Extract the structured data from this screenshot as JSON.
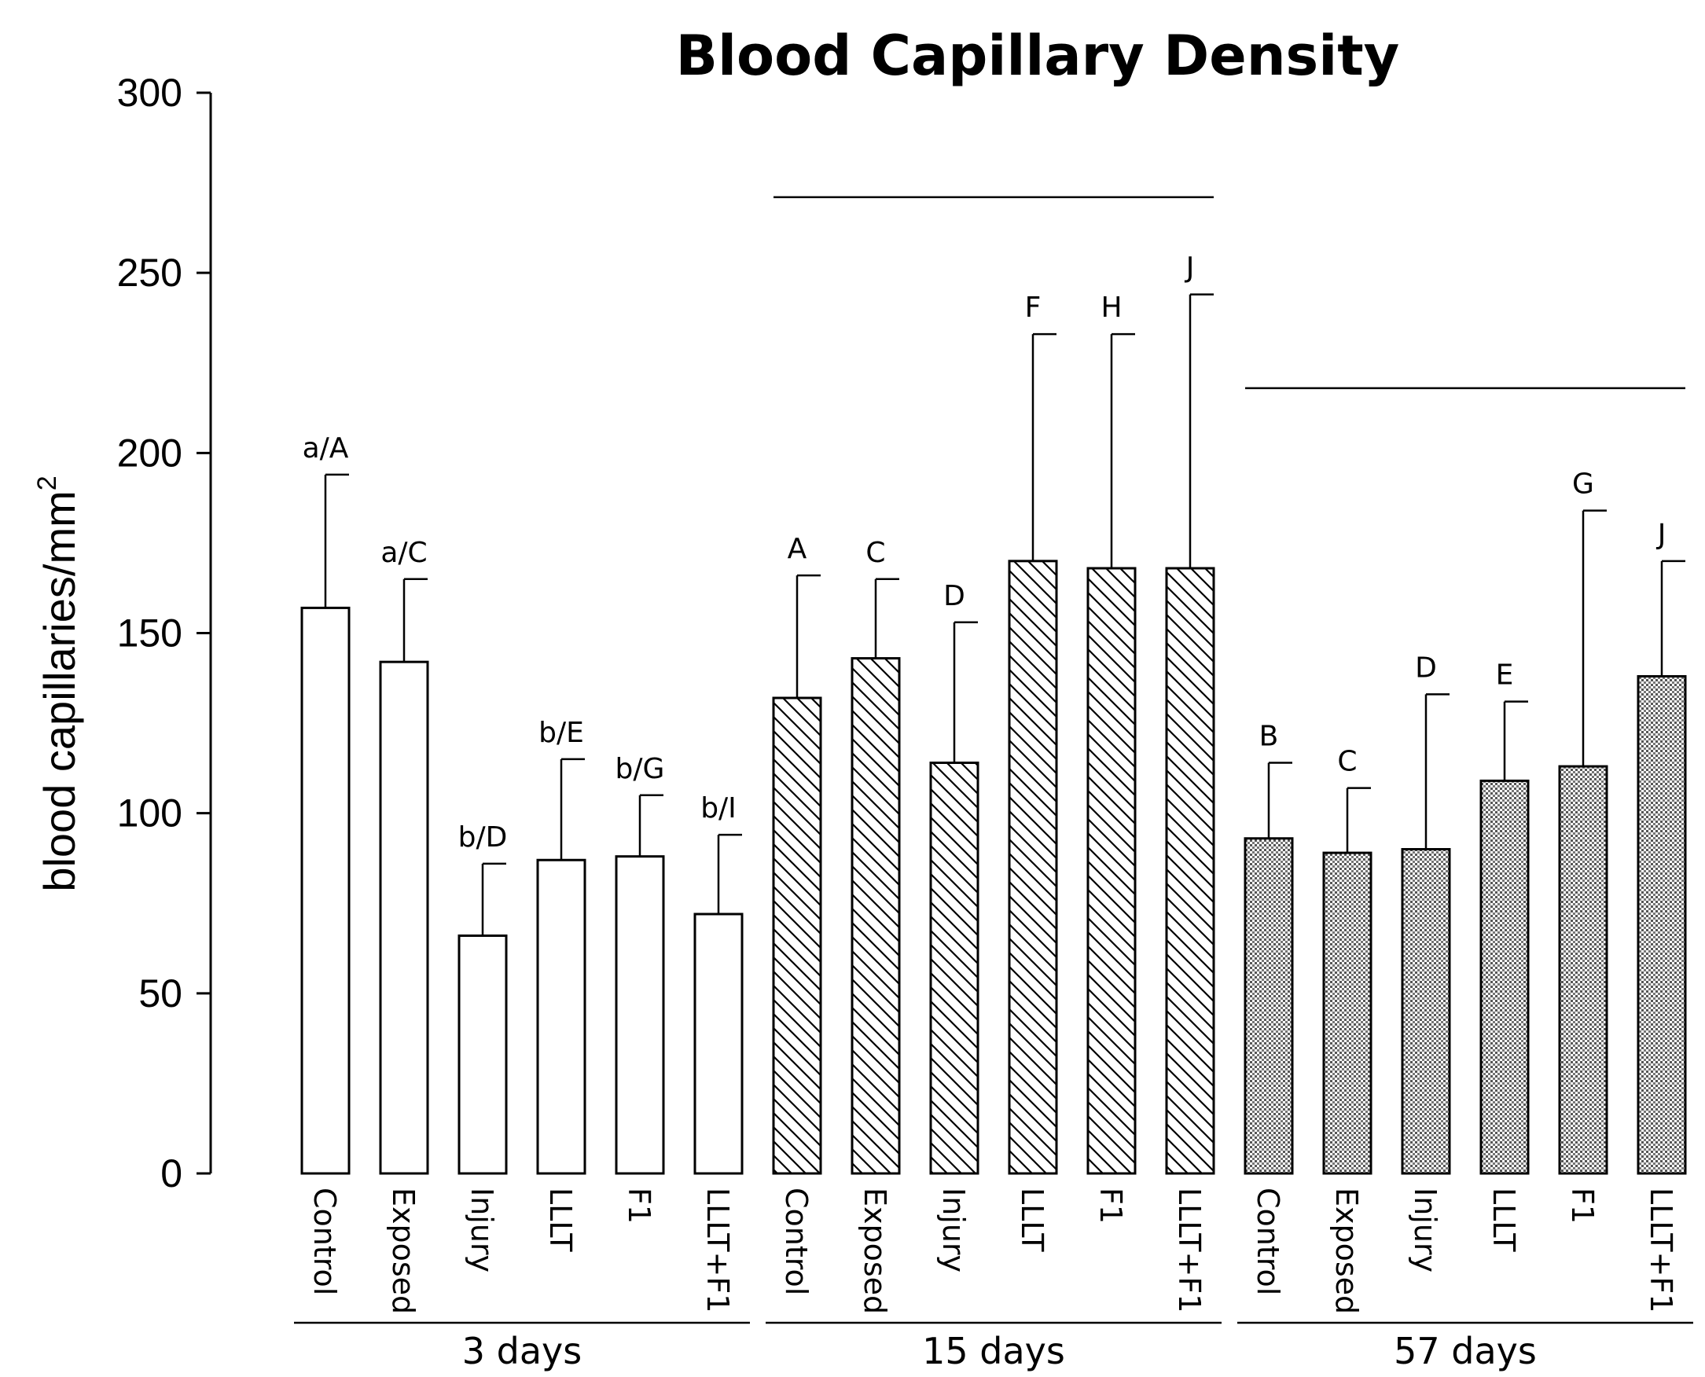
{
  "chart_data": {
    "type": "bar",
    "title": "Blood Capillary Density",
    "xlabel": "",
    "ylabel": "blood capillaries/mm",
    "ylabel_superscript": "2",
    "ylim": [
      0,
      300
    ],
    "yticks": [
      0,
      50,
      100,
      150,
      200,
      250,
      300
    ],
    "grid": false,
    "groups": [
      {
        "label": "3 days",
        "pattern": "none",
        "bars": [
          {
            "category": "Control",
            "value": 157,
            "error": 37,
            "annotation": "a/A"
          },
          {
            "category": "Exposed",
            "value": 142,
            "error": 23,
            "annotation": "a/C"
          },
          {
            "category": "Injury",
            "value": 66,
            "error": 20,
            "annotation": "b/D"
          },
          {
            "category": "LLLT",
            "value": 87,
            "error": 28,
            "annotation": "b/E"
          },
          {
            "category": "F1",
            "value": 88,
            "error": 17,
            "annotation": "b/G"
          },
          {
            "category": "LLLT+F1",
            "value": 72,
            "error": 22,
            "annotation": "b/I"
          }
        ]
      },
      {
        "label": "15 days",
        "pattern": "diagonal",
        "bars": [
          {
            "category": "Control",
            "value": 132,
            "error": 34,
            "annotation": "A"
          },
          {
            "category": "Exposed",
            "value": 143,
            "error": 22,
            "annotation": "C"
          },
          {
            "category": "Injury",
            "value": 114,
            "error": 39,
            "annotation": "D"
          },
          {
            "category": "LLLT",
            "value": 170,
            "error": 63,
            "annotation": "F"
          },
          {
            "category": "F1",
            "value": 168,
            "error": 65,
            "annotation": "H"
          },
          {
            "category": "LLLT+F1",
            "value": 168,
            "error": 76,
            "annotation": "J"
          }
        ]
      },
      {
        "label": "57 days",
        "pattern": "dotted",
        "bars": [
          {
            "category": "Control",
            "value": 93,
            "error": 21,
            "annotation": "B"
          },
          {
            "category": "Exposed",
            "value": 89,
            "error": 18,
            "annotation": "C"
          },
          {
            "category": "Injury",
            "value": 90,
            "error": 43,
            "annotation": "D"
          },
          {
            "category": "LLLT",
            "value": 109,
            "error": 22,
            "annotation": "E"
          },
          {
            "category": "F1",
            "value": 113,
            "error": 71,
            "annotation": "G"
          },
          {
            "category": "LLLT+F1",
            "value": 138,
            "error": 32,
            "annotation": "J"
          }
        ]
      }
    ],
    "significance_lines": [
      {
        "from_group": 1,
        "y": 271
      },
      {
        "from_group": 2,
        "y": 218
      }
    ]
  }
}
